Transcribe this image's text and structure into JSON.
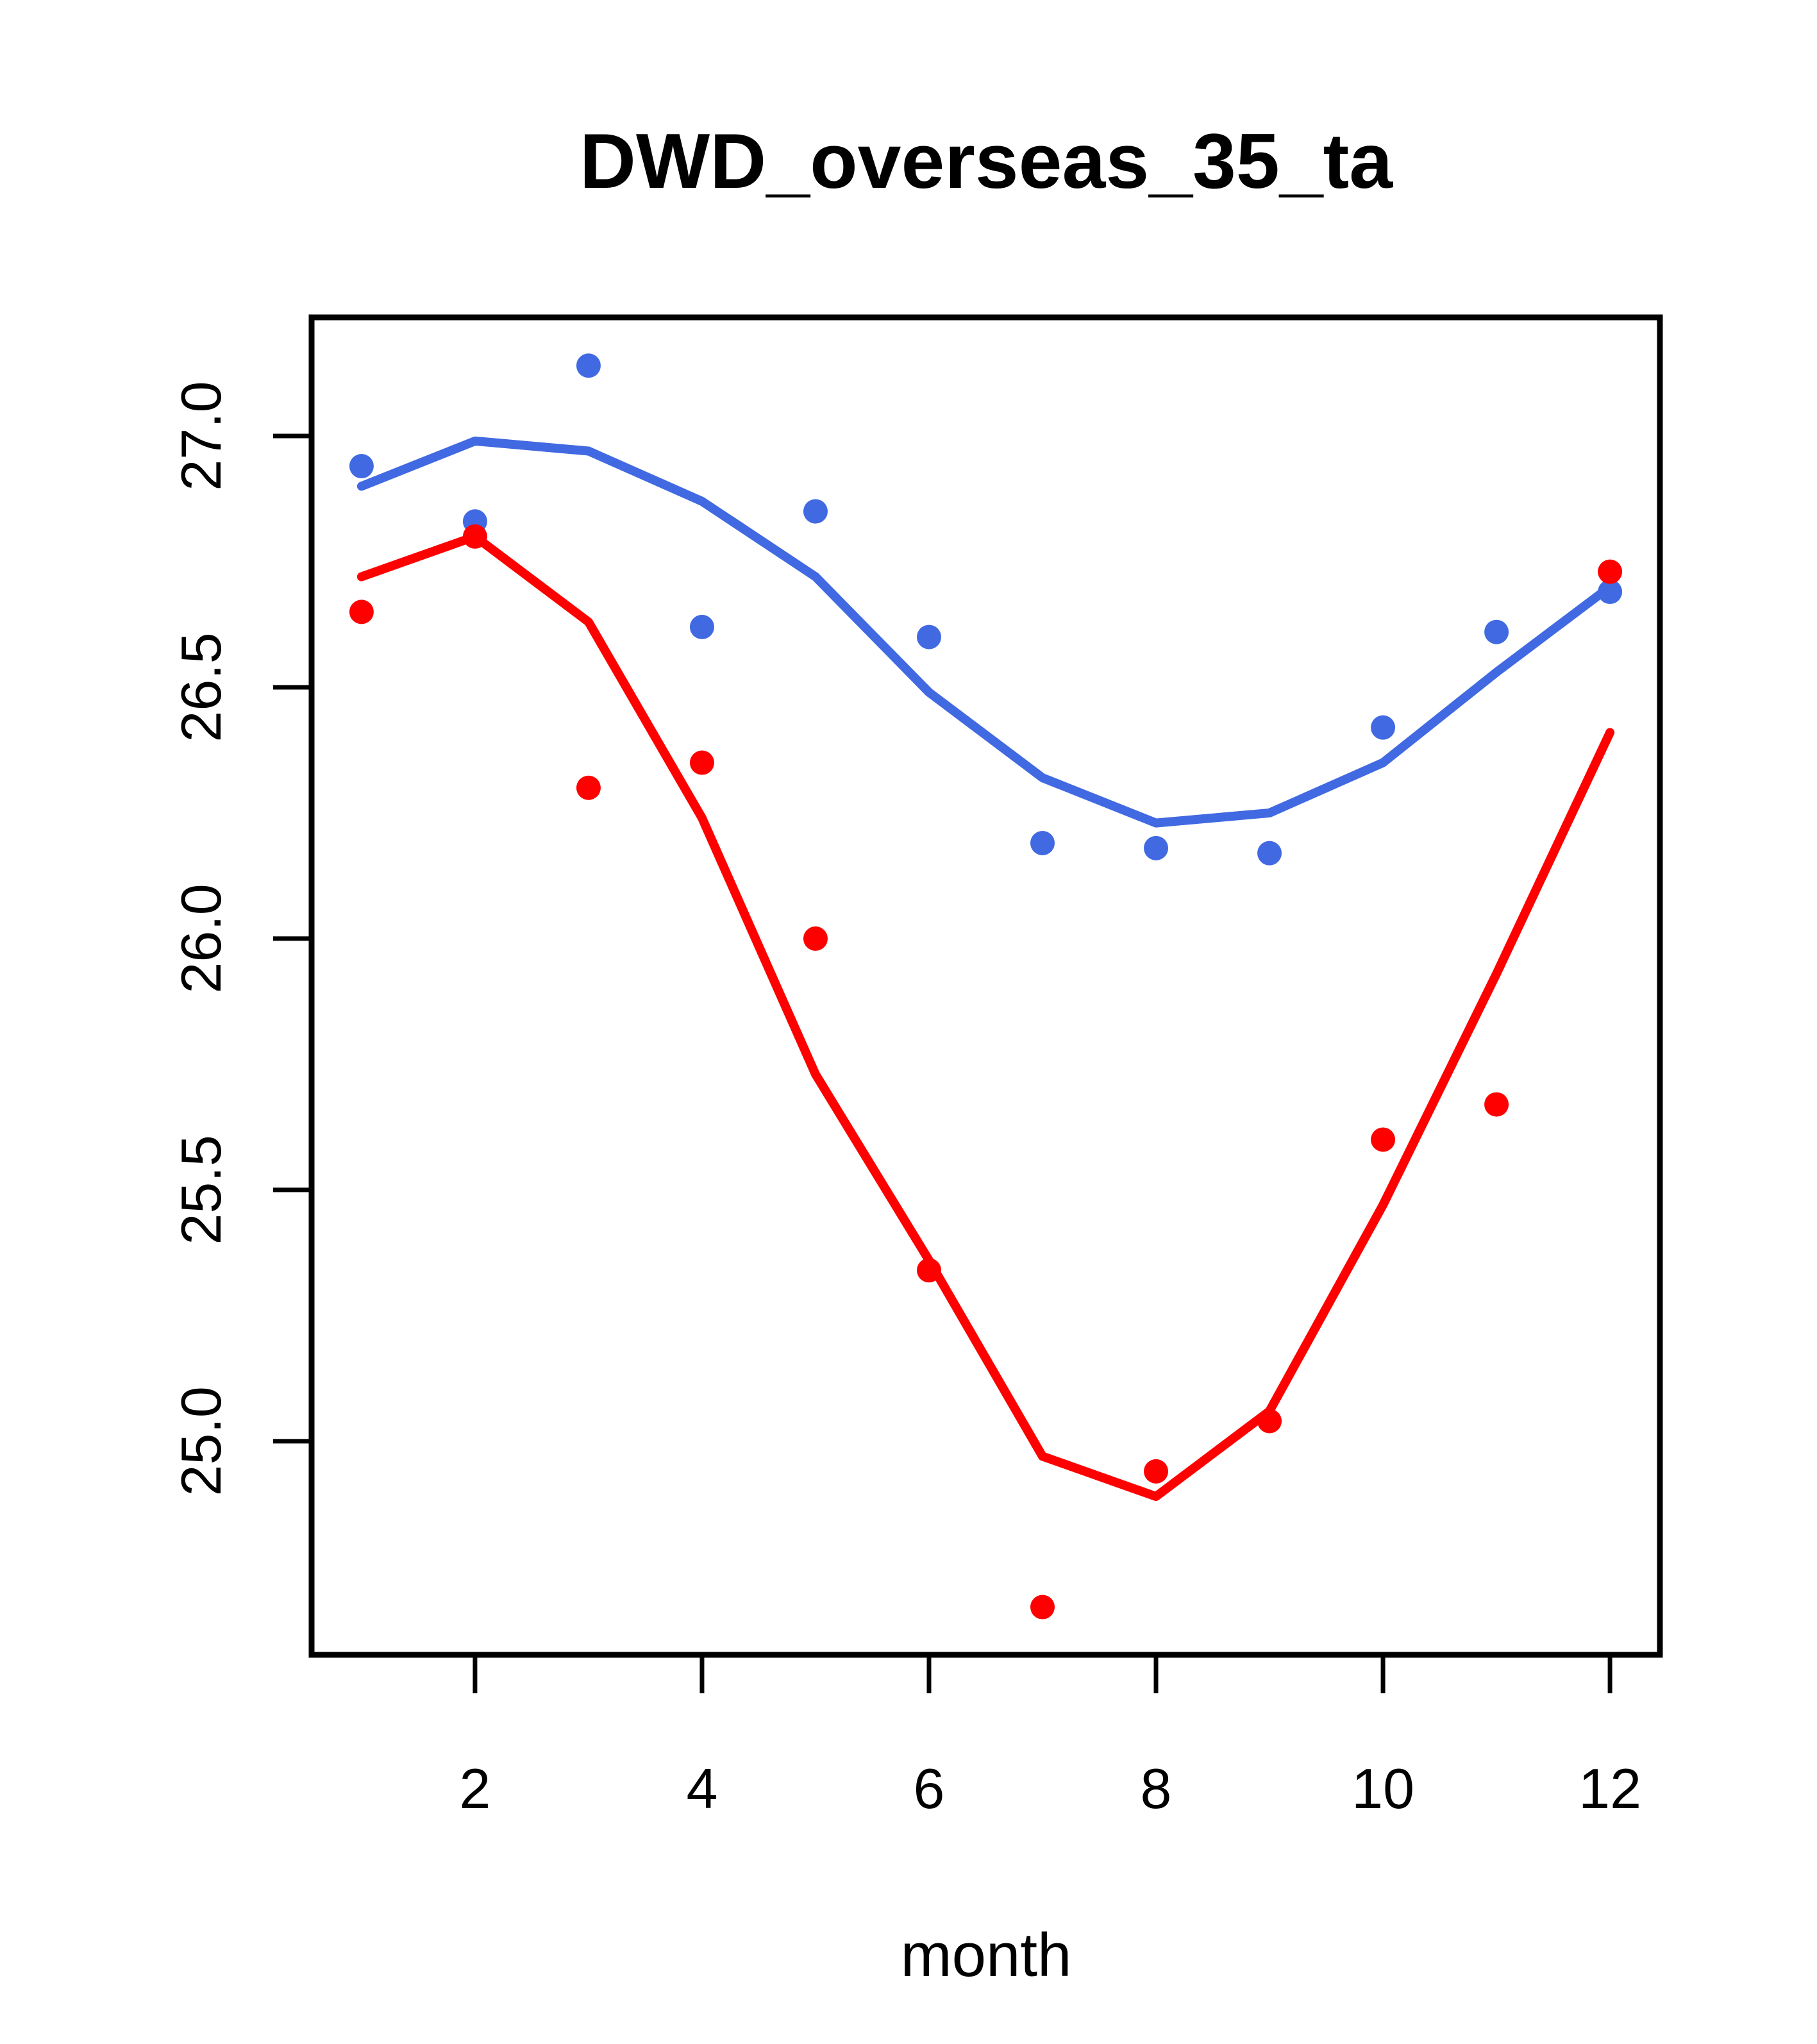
{
  "chart_data": {
    "type": "scatter",
    "title": "DWD_overseas_35_ta",
    "xlabel": "month",
    "ylabel": "",
    "grid": false,
    "legend": "none",
    "xlim": [
      0.56,
      12.44
    ],
    "ylim": [
      24.575,
      27.236
    ],
    "x_ticks": [
      {
        "v": 2,
        "label": "2"
      },
      {
        "v": 4,
        "label": "4"
      },
      {
        "v": 6,
        "label": "6"
      },
      {
        "v": 8,
        "label": "8"
      },
      {
        "v": 10,
        "label": "10"
      },
      {
        "v": 12,
        "label": "12"
      }
    ],
    "y_ticks": [
      {
        "v": 25.0,
        "label": "25.0"
      },
      {
        "v": 25.5,
        "label": "25.5"
      },
      {
        "v": 26.0,
        "label": "26.0"
      },
      {
        "v": 26.5,
        "label": "26.5"
      },
      {
        "v": 27.0,
        "label": "27.0"
      }
    ],
    "x": [
      1,
      2,
      3,
      4,
      5,
      6,
      7,
      8,
      9,
      10,
      11,
      12
    ],
    "series": [
      {
        "name": "blue-observations",
        "kind": "points",
        "color": "#4169E1",
        "values": [
          26.94,
          26.83,
          27.14,
          26.62,
          26.85,
          26.6,
          26.19,
          26.18,
          26.17,
          26.42,
          26.61,
          26.69
        ]
      },
      {
        "name": "blue-smooth-line",
        "kind": "line",
        "color": "#4169E1",
        "values": [
          26.9,
          26.99,
          26.97,
          26.87,
          26.72,
          26.49,
          26.32,
          26.23,
          26.25,
          26.35,
          26.53,
          26.7
        ]
      },
      {
        "name": "red-observations",
        "kind": "points",
        "color": "#FF0000",
        "values": [
          26.65,
          26.8,
          26.3,
          26.35,
          26.0,
          25.34,
          24.67,
          24.94,
          25.04,
          25.6,
          25.67,
          26.73
        ]
      },
      {
        "name": "red-smooth-line",
        "kind": "line",
        "color": "#FF0000",
        "values": [
          26.72,
          26.8,
          26.63,
          26.24,
          25.73,
          25.36,
          24.97,
          24.89,
          25.06,
          25.47,
          25.93,
          26.41
        ]
      }
    ],
    "colors": {
      "series1": "#4169E1",
      "series2": "#FF0000",
      "axis": "#000000",
      "background": "#FFFFFF"
    }
  }
}
